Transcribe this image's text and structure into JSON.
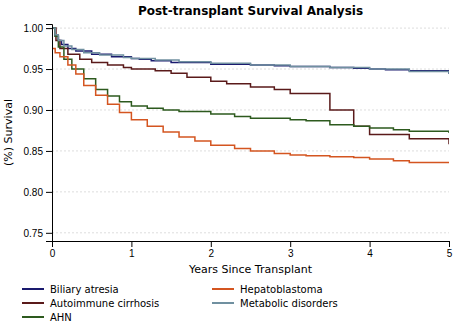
{
  "chart_data": {
    "type": "step",
    "title": "Post-transplant Survival Analysis",
    "x_label": "Years Since Transplant",
    "y_label": "(%) Survival",
    "xlim": [
      0,
      5
    ],
    "ylim": [
      0.74,
      1.005
    ],
    "xticks": [
      0,
      1,
      2,
      3,
      4,
      5
    ],
    "yticks": [
      0.75,
      {
        "value": 0.8,
        "label": "0.80"
      },
      0.85,
      {
        "value": 0.9,
        "label": "0.90"
      },
      0.95,
      {
        "value": 1.0,
        "label": "1.00"
      }
    ],
    "grid": "y",
    "series": [
      {
        "name": "Biliary atresia",
        "color": "#1a1a6e",
        "x": [
          0,
          0.04,
          0.08,
          0.12,
          0.2,
          0.3,
          0.5,
          0.75,
          1.0,
          1.1,
          1.25,
          1.5,
          2.0,
          2.5,
          2.8,
          3.0,
          3.5,
          3.8,
          4.0,
          4.2,
          4.5,
          5.0
        ],
        "values": [
          1.0,
          0.99,
          0.985,
          0.98,
          0.975,
          0.972,
          0.968,
          0.965,
          0.963,
          0.962,
          0.96,
          0.958,
          0.956,
          0.955,
          0.954,
          0.953,
          0.952,
          0.951,
          0.95,
          0.949,
          0.948,
          0.944
        ]
      },
      {
        "name": "Autoimmune cirrhosis",
        "color": "#5a1a1a",
        "x": [
          0,
          0.05,
          0.1,
          0.2,
          0.35,
          0.5,
          0.7,
          0.9,
          1.0,
          1.3,
          1.5,
          1.7,
          2.0,
          2.2,
          2.5,
          2.8,
          3.0,
          3.5,
          3.8,
          4.0,
          4.5,
          5.0
        ],
        "values": [
          1.0,
          0.985,
          0.975,
          0.968,
          0.962,
          0.958,
          0.955,
          0.952,
          0.95,
          0.948,
          0.945,
          0.94,
          0.935,
          0.932,
          0.928,
          0.925,
          0.92,
          0.9,
          0.88,
          0.87,
          0.865,
          0.858
        ]
      },
      {
        "name": "AHN",
        "color": "#2d5a1e",
        "x": [
          0,
          0.04,
          0.08,
          0.15,
          0.25,
          0.4,
          0.55,
          0.7,
          0.85,
          1.0,
          1.2,
          1.4,
          1.6,
          2.0,
          2.3,
          2.5,
          3.0,
          3.2,
          3.5,
          3.8,
          4.0,
          4.3,
          4.5,
          5.0
        ],
        "values": [
          1.0,
          0.99,
          0.977,
          0.962,
          0.95,
          0.938,
          0.925,
          0.917,
          0.91,
          0.905,
          0.902,
          0.9,
          0.898,
          0.895,
          0.892,
          0.89,
          0.888,
          0.887,
          0.882,
          0.88,
          0.878,
          0.876,
          0.874,
          0.872
        ]
      },
      {
        "name": "Hepatoblastoma",
        "color": "#d45520",
        "x": [
          0,
          0.04,
          0.1,
          0.2,
          0.3,
          0.4,
          0.55,
          0.7,
          0.85,
          1.0,
          1.2,
          1.4,
          1.6,
          1.8,
          2.0,
          2.3,
          2.5,
          2.8,
          3.0,
          3.2,
          3.5,
          3.8,
          4.0,
          4.3,
          4.5,
          5.0
        ],
        "values": [
          0.975,
          0.97,
          0.965,
          0.955,
          0.944,
          0.93,
          0.918,
          0.907,
          0.897,
          0.888,
          0.88,
          0.873,
          0.867,
          0.862,
          0.857,
          0.853,
          0.85,
          0.847,
          0.845,
          0.844,
          0.843,
          0.842,
          0.84,
          0.838,
          0.836,
          0.835
        ]
      },
      {
        "name": "Metabolic disorders",
        "color": "#7090a0",
        "x": [
          0,
          0.04,
          0.08,
          0.15,
          0.25,
          0.4,
          0.6,
          0.9,
          1.0,
          1.3,
          1.6,
          2.0,
          2.5,
          3.0,
          3.5,
          4.0,
          4.5,
          5.0
        ],
        "values": [
          1.0,
          0.992,
          0.985,
          0.978,
          0.974,
          0.97,
          0.967,
          0.964,
          0.963,
          0.961,
          0.959,
          0.957,
          0.955,
          0.953,
          0.952,
          0.95,
          0.947,
          0.944
        ]
      }
    ]
  }
}
